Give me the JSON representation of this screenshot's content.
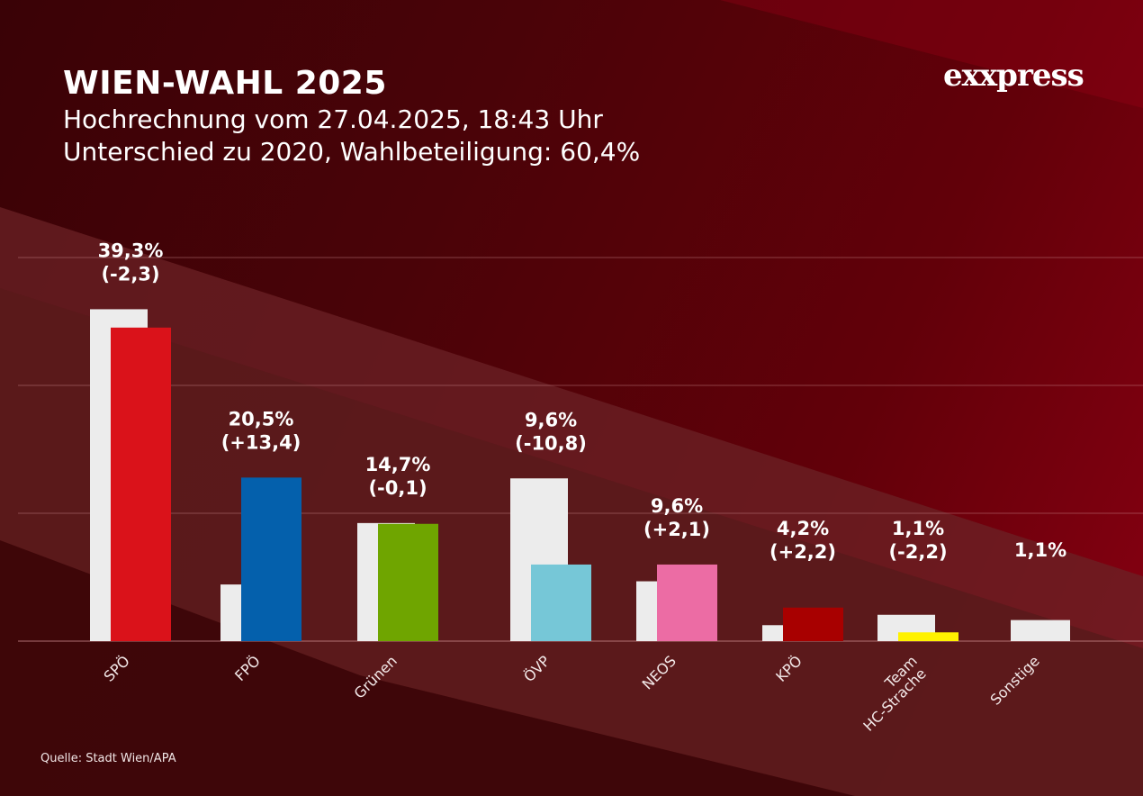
{
  "header": {
    "title": "WIEN-WAHL 2025",
    "subtitle1": "Hochrechnung vom 27.04.2025, 18:43 Uhr",
    "subtitle2": "Unterschied zu 2020, Wahlbeteiligung: 60,4%"
  },
  "brand": {
    "logo_text": "exxpress"
  },
  "footer": {
    "source": "Quelle: Stadt Wien/APA"
  },
  "colors": {
    "previous_bar": "#ececec",
    "background": "#4a0308"
  },
  "chart_data": {
    "type": "bar",
    "title": "WIEN-WAHL 2025",
    "xlabel": "",
    "ylabel": "",
    "ylim": [
      0,
      45
    ],
    "grid": true,
    "legend": "none",
    "categories": [
      "SPÖ",
      "FPÖ",
      "Grünen",
      "ÖVP",
      "NEOS",
      "KPÖ",
      "Team HC-Strache",
      "Sonstige"
    ],
    "category_lines": [
      [
        "SPÖ"
      ],
      [
        "FPÖ"
      ],
      [
        "Grünen"
      ],
      [
        "ÖVP"
      ],
      [
        "NEOS"
      ],
      [
        "KPÖ"
      ],
      [
        "Team",
        "HC-Strache"
      ],
      [
        "Sonstige"
      ]
    ],
    "series": [
      {
        "name": "2020",
        "values": [
          41.6,
          7.1,
          14.8,
          20.4,
          7.5,
          2.0,
          3.3,
          null
        ],
        "color": "#ececec"
      },
      {
        "name": "2025",
        "values": [
          39.3,
          20.5,
          14.7,
          9.6,
          9.6,
          4.2,
          1.1,
          1.1
        ],
        "colors": [
          "#da121a",
          "#0460ac",
          "#6fa500",
          "#76c7d7",
          "#ec6ca4",
          "#a80000",
          "#fff200",
          "#ececec"
        ]
      }
    ],
    "value_labels": [
      "39,3%",
      "20,5%",
      "14,7%",
      "9,6%",
      "9,6%",
      "4,2%",
      "1,1%",
      "1,1%"
    ],
    "change_labels": [
      "(-2,3)",
      "(+13,4)",
      "(-0,1)",
      "(-10,8)",
      "(+2,1)",
      "(+2,2)",
      "(-2,2)",
      ""
    ]
  }
}
